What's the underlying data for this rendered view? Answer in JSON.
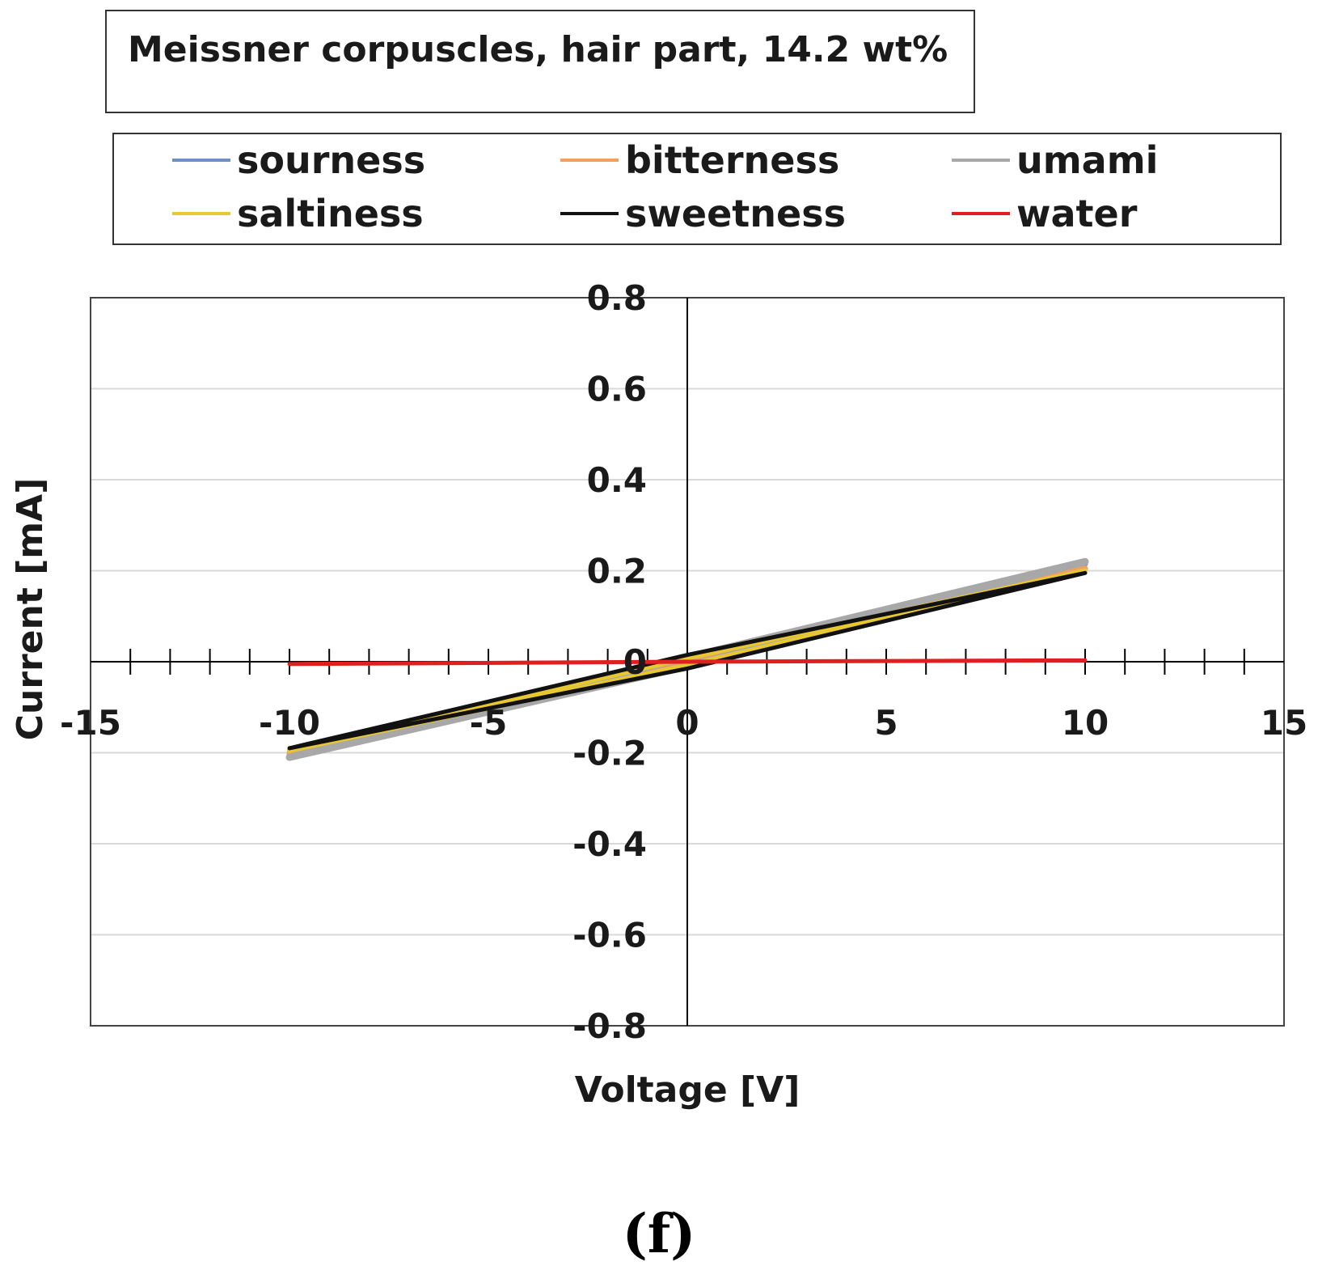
{
  "panel_label": "(f)",
  "chart_data": {
    "type": "line",
    "title": "Meissner corpuscles, hair part, 14.2 wt%",
    "xlabel": "Voltage [V]",
    "ylabel": "Current [mA]",
    "xlim": [
      -15,
      15
    ],
    "ylim": [
      -0.8,
      0.8
    ],
    "xticks": [
      "-15",
      "-10",
      "-5",
      "0",
      "5",
      "10",
      "15"
    ],
    "yticks": [
      "0.8",
      "0.6",
      "0.4",
      "0.2",
      "0",
      "-0.2",
      "-0.4",
      "-0.6",
      "-0.8"
    ],
    "grid": "horizontal",
    "legend_position": "top",
    "series": [
      {
        "name": "sourness",
        "color": "#6f8fc8",
        "x": [
          -10,
          0,
          10,
          0,
          -10
        ],
        "y": [
          -0.205,
          0.0,
          0.215,
          0.0,
          -0.205
        ]
      },
      {
        "name": "bitterness",
        "color": "#f0a060",
        "x": [
          -10,
          0,
          10,
          0,
          -10
        ],
        "y": [
          -0.2,
          -0.005,
          0.205,
          0.005,
          -0.2
        ]
      },
      {
        "name": "umami",
        "color": "#a8a8a8",
        "x": [
          -10,
          0,
          10,
          0,
          -10
        ],
        "y": [
          -0.21,
          -0.01,
          0.22,
          0.01,
          -0.21
        ]
      },
      {
        "name": "saltiness",
        "color": "#e8c830",
        "x": [
          -10,
          0,
          10,
          0,
          -10
        ],
        "y": [
          -0.195,
          -0.008,
          0.2,
          0.008,
          -0.195
        ]
      },
      {
        "name": "sweetness",
        "color": "#111111",
        "x": [
          -10,
          0,
          10,
          0,
          -10
        ],
        "y": [
          -0.19,
          -0.015,
          0.195,
          0.015,
          -0.19
        ]
      },
      {
        "name": "water",
        "color": "#e02020",
        "x": [
          -10,
          0,
          10,
          0,
          -10
        ],
        "y": [
          -0.005,
          0.0,
          0.003,
          0.0,
          -0.005
        ]
      }
    ]
  }
}
